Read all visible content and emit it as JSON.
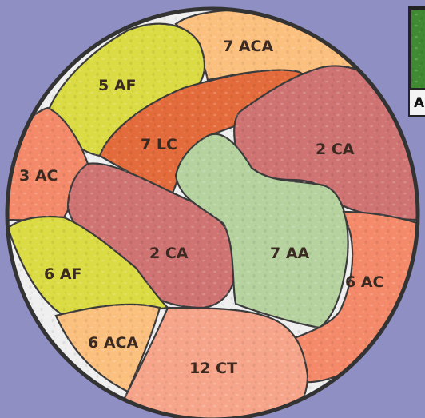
{
  "colors": {
    "background": "#8f8fc4",
    "disc_grout": "#efefef",
    "rim": "#333333",
    "ACA": "#fbbf7e",
    "AF": "#dbdb43",
    "LC": "#e46b3b",
    "CA": "#cf7373",
    "AA": "#b5d29f",
    "AC": "#f48a6a",
    "CT": "#f6a58a",
    "inset_frame": "#222222",
    "inset_green": "#3f8a32"
  },
  "regions": [
    {
      "id": "aca-top",
      "label": "7 ACA",
      "class": "ACA"
    },
    {
      "id": "af-top",
      "label": "5 AF",
      "class": "AF"
    },
    {
      "id": "lc",
      "label": "7 LC",
      "class": "LC"
    },
    {
      "id": "ca-right",
      "label": "2 CA",
      "class": "CA"
    },
    {
      "id": "ac-left",
      "label": "3 AC",
      "class": "AC"
    },
    {
      "id": "ca-center",
      "label": "2 CA",
      "class": "CA"
    },
    {
      "id": "aa",
      "label": "7 AA",
      "class": "AA"
    },
    {
      "id": "af-bottom",
      "label": "6 AF",
      "class": "AF"
    },
    {
      "id": "ac-right",
      "label": "6 AC",
      "class": "AC"
    },
    {
      "id": "aca-bottom",
      "label": "6 ACA",
      "class": "ACA"
    },
    {
      "id": "ct",
      "label": "12 CT",
      "class": "CT"
    }
  ],
  "inset": {
    "letter": "A"
  }
}
